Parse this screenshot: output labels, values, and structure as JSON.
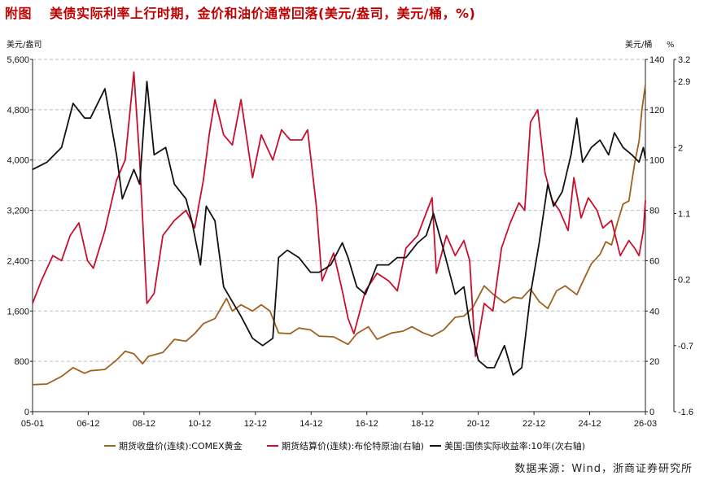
{
  "title_tag": "附图",
  "title": "美债实际利率上行时期，金价和油价通常回落(美元/盎司，美元/桶，%)",
  "source": "数据来源：Wind，浙商证券研究所",
  "chart_data": {
    "type": "line",
    "left_unit": "美元/盎司",
    "right_unit": "美元/桶",
    "right2_unit": "%",
    "x_ticks": [
      "05-01",
      "06-12",
      "08-12",
      "10-12",
      "12-12",
      "14-12",
      "16-12",
      "18-12",
      "20-12",
      "22-12",
      "24-12",
      "26-03"
    ],
    "x_range": [
      2005.0,
      2026.17
    ],
    "left_axis": {
      "min": 0,
      "max": 5600,
      "ticks": [
        0,
        800,
        1600,
        2400,
        3200,
        4000,
        4800,
        5600
      ],
      "tick_labels": [
        "0",
        "800",
        "1,600",
        "2,400",
        "3,200",
        "4,000",
        "4,800",
        "5,600"
      ]
    },
    "right_axis": {
      "min": 0,
      "max": 140,
      "ticks": [
        0,
        20,
        40,
        60,
        80,
        100,
        120,
        140
      ],
      "tick_labels": [
        "0",
        "20",
        "40",
        "60",
        "80",
        "100",
        "120",
        "140"
      ]
    },
    "right2_axis": {
      "min": -1.6,
      "max": 3.2,
      "ticks": [
        3.2,
        2.9,
        2,
        1.1,
        0.2,
        -0.7,
        -1.6
      ],
      "tick_labels": [
        "3.2",
        "2.9",
        "2",
        "1.1",
        "0.2",
        "-0.7",
        "-1.6"
      ]
    },
    "grid": "horizontal-dashed",
    "legend_position": "bottom",
    "series": [
      {
        "name": "期货收盘价(连续):COMEX黄金",
        "axis": "left",
        "color": "#a0601e",
        "points": [
          [
            2005.0,
            430
          ],
          [
            2005.5,
            440
          ],
          [
            2006.0,
            560
          ],
          [
            2006.4,
            700
          ],
          [
            2006.8,
            610
          ],
          [
            2007.0,
            650
          ],
          [
            2007.5,
            670
          ],
          [
            2007.9,
            820
          ],
          [
            2008.2,
            960
          ],
          [
            2008.5,
            920
          ],
          [
            2008.8,
            760
          ],
          [
            2009.0,
            880
          ],
          [
            2009.5,
            940
          ],
          [
            2009.9,
            1150
          ],
          [
            2010.3,
            1120
          ],
          [
            2010.6,
            1240
          ],
          [
            2010.9,
            1400
          ],
          [
            2011.3,
            1480
          ],
          [
            2011.7,
            1800
          ],
          [
            2011.9,
            1600
          ],
          [
            2012.2,
            1700
          ],
          [
            2012.6,
            1600
          ],
          [
            2012.9,
            1700
          ],
          [
            2013.2,
            1600
          ],
          [
            2013.5,
            1250
          ],
          [
            2013.9,
            1240
          ],
          [
            2014.2,
            1330
          ],
          [
            2014.6,
            1300
          ],
          [
            2014.9,
            1200
          ],
          [
            2015.4,
            1190
          ],
          [
            2015.9,
            1070
          ],
          [
            2016.2,
            1240
          ],
          [
            2016.6,
            1350
          ],
          [
            2016.9,
            1150
          ],
          [
            2017.4,
            1250
          ],
          [
            2017.8,
            1280
          ],
          [
            2018.1,
            1350
          ],
          [
            2018.5,
            1250
          ],
          [
            2018.8,
            1200
          ],
          [
            2019.2,
            1300
          ],
          [
            2019.6,
            1500
          ],
          [
            2019.9,
            1520
          ],
          [
            2020.2,
            1650
          ],
          [
            2020.6,
            2000
          ],
          [
            2020.9,
            1870
          ],
          [
            2021.3,
            1730
          ],
          [
            2021.6,
            1820
          ],
          [
            2021.9,
            1800
          ],
          [
            2022.2,
            1950
          ],
          [
            2022.5,
            1750
          ],
          [
            2022.8,
            1640
          ],
          [
            2023.1,
            1920
          ],
          [
            2023.4,
            2000
          ],
          [
            2023.8,
            1860
          ],
          [
            2024.0,
            2060
          ],
          [
            2024.3,
            2350
          ],
          [
            2024.6,
            2500
          ],
          [
            2024.8,
            2700
          ],
          [
            2025.0,
            2650
          ],
          [
            2025.2,
            3000
          ],
          [
            2025.4,
            3300
          ],
          [
            2025.6,
            3350
          ],
          [
            2025.8,
            3950
          ],
          [
            2025.95,
            4300
          ],
          [
            2026.05,
            4800
          ],
          [
            2026.17,
            5200
          ]
        ]
      },
      {
        "name": "期货结算价(连续):布伦特原油(右轴)",
        "axis": "right",
        "color": "#c8102e",
        "points": [
          [
            2005.0,
            43
          ],
          [
            2005.3,
            52
          ],
          [
            2005.7,
            62
          ],
          [
            2006.0,
            60
          ],
          [
            2006.3,
            70
          ],
          [
            2006.6,
            75
          ],
          [
            2006.9,
            60
          ],
          [
            2007.1,
            57
          ],
          [
            2007.5,
            72
          ],
          [
            2007.9,
            92
          ],
          [
            2008.2,
            100
          ],
          [
            2008.5,
            135
          ],
          [
            2008.7,
            100
          ],
          [
            2008.95,
            43
          ],
          [
            2009.2,
            47
          ],
          [
            2009.5,
            70
          ],
          [
            2009.9,
            76
          ],
          [
            2010.3,
            80
          ],
          [
            2010.6,
            73
          ],
          [
            2010.9,
            92
          ],
          [
            2011.1,
            110
          ],
          [
            2011.3,
            124
          ],
          [
            2011.6,
            110
          ],
          [
            2011.9,
            106
          ],
          [
            2012.2,
            124
          ],
          [
            2012.6,
            93
          ],
          [
            2012.9,
            110
          ],
          [
            2013.3,
            100
          ],
          [
            2013.6,
            112
          ],
          [
            2013.9,
            108
          ],
          [
            2014.3,
            108
          ],
          [
            2014.5,
            112
          ],
          [
            2014.8,
            82
          ],
          [
            2015.0,
            52
          ],
          [
            2015.4,
            63
          ],
          [
            2015.7,
            48
          ],
          [
            2015.9,
            37
          ],
          [
            2016.1,
            31
          ],
          [
            2016.5,
            48
          ],
          [
            2016.9,
            55
          ],
          [
            2017.3,
            52
          ],
          [
            2017.6,
            48
          ],
          [
            2017.9,
            65
          ],
          [
            2018.3,
            70
          ],
          [
            2018.6,
            79
          ],
          [
            2018.8,
            85
          ],
          [
            2018.95,
            55
          ],
          [
            2019.3,
            70
          ],
          [
            2019.6,
            62
          ],
          [
            2019.9,
            68
          ],
          [
            2020.1,
            60
          ],
          [
            2020.3,
            22
          ],
          [
            2020.6,
            43
          ],
          [
            2020.9,
            40
          ],
          [
            2021.2,
            65
          ],
          [
            2021.5,
            75
          ],
          [
            2021.8,
            83
          ],
          [
            2022.0,
            80
          ],
          [
            2022.2,
            115
          ],
          [
            2022.45,
            120
          ],
          [
            2022.7,
            95
          ],
          [
            2022.95,
            84
          ],
          [
            2023.2,
            80
          ],
          [
            2023.5,
            72
          ],
          [
            2023.7,
            93
          ],
          [
            2023.95,
            77
          ],
          [
            2024.2,
            85
          ],
          [
            2024.5,
            80
          ],
          [
            2024.7,
            73
          ],
          [
            2025.0,
            76
          ],
          [
            2025.3,
            62
          ],
          [
            2025.6,
            68
          ],
          [
            2025.8,
            65
          ],
          [
            2025.95,
            62
          ],
          [
            2026.1,
            72
          ],
          [
            2026.17,
            84
          ]
        ]
      },
      {
        "name": "美国:国债实际收益率:10年(次右轴)",
        "axis": "right2",
        "color": "#111111",
        "points": [
          [
            2005.0,
            1.7
          ],
          [
            2005.5,
            1.8
          ],
          [
            2006.0,
            2.0
          ],
          [
            2006.4,
            2.6
          ],
          [
            2006.8,
            2.4
          ],
          [
            2007.0,
            2.4
          ],
          [
            2007.5,
            2.8
          ],
          [
            2007.9,
            1.9
          ],
          [
            2008.1,
            1.3
          ],
          [
            2008.5,
            1.7
          ],
          [
            2008.7,
            1.5
          ],
          [
            2008.95,
            2.9
          ],
          [
            2009.2,
            1.9
          ],
          [
            2009.6,
            2.0
          ],
          [
            2009.9,
            1.5
          ],
          [
            2010.3,
            1.3
          ],
          [
            2010.5,
            1.0
          ],
          [
            2010.8,
            0.4
          ],
          [
            2011.0,
            1.2
          ],
          [
            2011.3,
            1.0
          ],
          [
            2011.6,
            0.1
          ],
          [
            2011.9,
            -0.1
          ],
          [
            2012.2,
            -0.3
          ],
          [
            2012.6,
            -0.6
          ],
          [
            2012.95,
            -0.7
          ],
          [
            2013.3,
            -0.6
          ],
          [
            2013.5,
            0.5
          ],
          [
            2013.8,
            0.6
          ],
          [
            2014.2,
            0.5
          ],
          [
            2014.6,
            0.3
          ],
          [
            2014.9,
            0.3
          ],
          [
            2015.3,
            0.4
          ],
          [
            2015.7,
            0.7
          ],
          [
            2015.9,
            0.5
          ],
          [
            2016.2,
            0.1
          ],
          [
            2016.5,
            0.0
          ],
          [
            2016.9,
            0.4
          ],
          [
            2017.3,
            0.4
          ],
          [
            2017.6,
            0.5
          ],
          [
            2017.9,
            0.5
          ],
          [
            2018.3,
            0.7
          ],
          [
            2018.6,
            0.8
          ],
          [
            2018.85,
            1.1
          ],
          [
            2019.2,
            0.6
          ],
          [
            2019.6,
            0.0
          ],
          [
            2019.9,
            0.1
          ],
          [
            2020.1,
            -0.4
          ],
          [
            2020.4,
            -0.9
          ],
          [
            2020.7,
            -1.0
          ],
          [
            2020.95,
            -1.0
          ],
          [
            2021.3,
            -0.7
          ],
          [
            2021.6,
            -1.1
          ],
          [
            2021.9,
            -1.0
          ],
          [
            2022.2,
            0.0
          ],
          [
            2022.5,
            0.7
          ],
          [
            2022.8,
            1.5
          ],
          [
            2023.0,
            1.2
          ],
          [
            2023.3,
            1.4
          ],
          [
            2023.6,
            1.9
          ],
          [
            2023.8,
            2.4
          ],
          [
            2024.0,
            1.8
          ],
          [
            2024.3,
            2.0
          ],
          [
            2024.6,
            2.1
          ],
          [
            2024.9,
            1.9
          ],
          [
            2025.1,
            2.2
          ],
          [
            2025.4,
            2.0
          ],
          [
            2025.7,
            1.9
          ],
          [
            2025.95,
            1.8
          ],
          [
            2026.1,
            2.0
          ],
          [
            2026.17,
            1.85
          ]
        ]
      }
    ]
  }
}
